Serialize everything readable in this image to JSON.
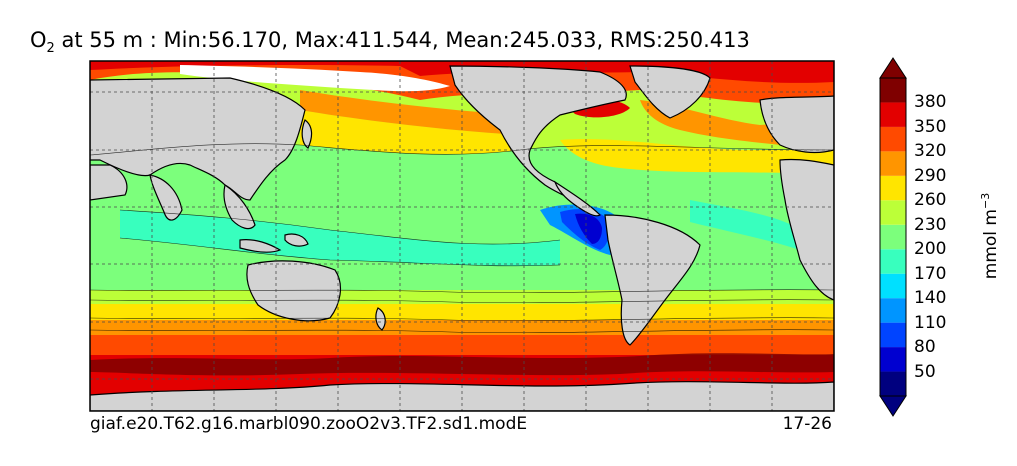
{
  "title": {
    "var": "O",
    "sub": "2",
    "text": " at 55 m : Min:56.170, Max:411.544, Mean:245.033, RMS:250.413"
  },
  "footer": {
    "case": "giaf.e20.T62.g16.marbl090.zooO2v3.TF2.sd1.modE",
    "years": "17-26"
  },
  "colorbar": {
    "unit_main": "mmol m",
    "unit_sup": "−3",
    "levels": [
      "50",
      "80",
      "110",
      "140",
      "170",
      "200",
      "230",
      "260",
      "290",
      "320",
      "350",
      "380"
    ],
    "colors": [
      "#00007f",
      "#0000d0",
      "#0044ff",
      "#0095ff",
      "#00e0ff",
      "#38ffbe",
      "#7cff7c",
      "#bcff38",
      "#ffe500",
      "#ff9500",
      "#ff4a00",
      "#e30000",
      "#7f0000"
    ]
  },
  "palette": {
    "land": "#d3d3d3",
    "coast": "#000000",
    "grid": "#4a4a4a"
  }
}
